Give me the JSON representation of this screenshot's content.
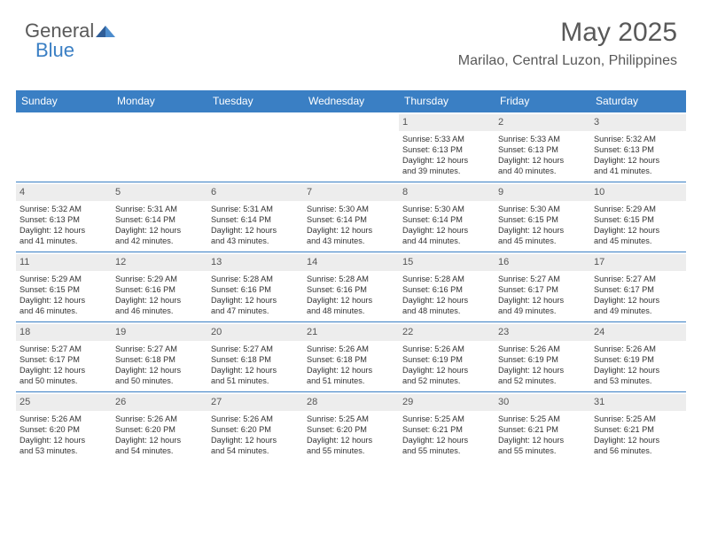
{
  "brand": {
    "general": "General",
    "blue": "Blue"
  },
  "title": "May 2025",
  "location": "Marilao, Central Luzon, Philippines",
  "colors": {
    "header_bg": "#3a7fc4",
    "header_text": "#ffffff",
    "daynum_bg": "#ededed",
    "body_text": "#333333",
    "title_text": "#595959"
  },
  "weekday_labels": [
    "Sunday",
    "Monday",
    "Tuesday",
    "Wednesday",
    "Thursday",
    "Friday",
    "Saturday"
  ],
  "weeks": [
    [
      {
        "blank": true
      },
      {
        "blank": true
      },
      {
        "blank": true
      },
      {
        "blank": true
      },
      {
        "d": "1",
        "sr": "Sunrise: 5:33 AM",
        "ss": "Sunset: 6:13 PM",
        "dl1": "Daylight: 12 hours",
        "dl2": "and 39 minutes."
      },
      {
        "d": "2",
        "sr": "Sunrise: 5:33 AM",
        "ss": "Sunset: 6:13 PM",
        "dl1": "Daylight: 12 hours",
        "dl2": "and 40 minutes."
      },
      {
        "d": "3",
        "sr": "Sunrise: 5:32 AM",
        "ss": "Sunset: 6:13 PM",
        "dl1": "Daylight: 12 hours",
        "dl2": "and 41 minutes."
      }
    ],
    [
      {
        "d": "4",
        "sr": "Sunrise: 5:32 AM",
        "ss": "Sunset: 6:13 PM",
        "dl1": "Daylight: 12 hours",
        "dl2": "and 41 minutes."
      },
      {
        "d": "5",
        "sr": "Sunrise: 5:31 AM",
        "ss": "Sunset: 6:14 PM",
        "dl1": "Daylight: 12 hours",
        "dl2": "and 42 minutes."
      },
      {
        "d": "6",
        "sr": "Sunrise: 5:31 AM",
        "ss": "Sunset: 6:14 PM",
        "dl1": "Daylight: 12 hours",
        "dl2": "and 43 minutes."
      },
      {
        "d": "7",
        "sr": "Sunrise: 5:30 AM",
        "ss": "Sunset: 6:14 PM",
        "dl1": "Daylight: 12 hours",
        "dl2": "and 43 minutes."
      },
      {
        "d": "8",
        "sr": "Sunrise: 5:30 AM",
        "ss": "Sunset: 6:14 PM",
        "dl1": "Daylight: 12 hours",
        "dl2": "and 44 minutes."
      },
      {
        "d": "9",
        "sr": "Sunrise: 5:30 AM",
        "ss": "Sunset: 6:15 PM",
        "dl1": "Daylight: 12 hours",
        "dl2": "and 45 minutes."
      },
      {
        "d": "10",
        "sr": "Sunrise: 5:29 AM",
        "ss": "Sunset: 6:15 PM",
        "dl1": "Daylight: 12 hours",
        "dl2": "and 45 minutes."
      }
    ],
    [
      {
        "d": "11",
        "sr": "Sunrise: 5:29 AM",
        "ss": "Sunset: 6:15 PM",
        "dl1": "Daylight: 12 hours",
        "dl2": "and 46 minutes."
      },
      {
        "d": "12",
        "sr": "Sunrise: 5:29 AM",
        "ss": "Sunset: 6:16 PM",
        "dl1": "Daylight: 12 hours",
        "dl2": "and 46 minutes."
      },
      {
        "d": "13",
        "sr": "Sunrise: 5:28 AM",
        "ss": "Sunset: 6:16 PM",
        "dl1": "Daylight: 12 hours",
        "dl2": "and 47 minutes."
      },
      {
        "d": "14",
        "sr": "Sunrise: 5:28 AM",
        "ss": "Sunset: 6:16 PM",
        "dl1": "Daylight: 12 hours",
        "dl2": "and 48 minutes."
      },
      {
        "d": "15",
        "sr": "Sunrise: 5:28 AM",
        "ss": "Sunset: 6:16 PM",
        "dl1": "Daylight: 12 hours",
        "dl2": "and 48 minutes."
      },
      {
        "d": "16",
        "sr": "Sunrise: 5:27 AM",
        "ss": "Sunset: 6:17 PM",
        "dl1": "Daylight: 12 hours",
        "dl2": "and 49 minutes."
      },
      {
        "d": "17",
        "sr": "Sunrise: 5:27 AM",
        "ss": "Sunset: 6:17 PM",
        "dl1": "Daylight: 12 hours",
        "dl2": "and 49 minutes."
      }
    ],
    [
      {
        "d": "18",
        "sr": "Sunrise: 5:27 AM",
        "ss": "Sunset: 6:17 PM",
        "dl1": "Daylight: 12 hours",
        "dl2": "and 50 minutes."
      },
      {
        "d": "19",
        "sr": "Sunrise: 5:27 AM",
        "ss": "Sunset: 6:18 PM",
        "dl1": "Daylight: 12 hours",
        "dl2": "and 50 minutes."
      },
      {
        "d": "20",
        "sr": "Sunrise: 5:27 AM",
        "ss": "Sunset: 6:18 PM",
        "dl1": "Daylight: 12 hours",
        "dl2": "and 51 minutes."
      },
      {
        "d": "21",
        "sr": "Sunrise: 5:26 AM",
        "ss": "Sunset: 6:18 PM",
        "dl1": "Daylight: 12 hours",
        "dl2": "and 51 minutes."
      },
      {
        "d": "22",
        "sr": "Sunrise: 5:26 AM",
        "ss": "Sunset: 6:19 PM",
        "dl1": "Daylight: 12 hours",
        "dl2": "and 52 minutes."
      },
      {
        "d": "23",
        "sr": "Sunrise: 5:26 AM",
        "ss": "Sunset: 6:19 PM",
        "dl1": "Daylight: 12 hours",
        "dl2": "and 52 minutes."
      },
      {
        "d": "24",
        "sr": "Sunrise: 5:26 AM",
        "ss": "Sunset: 6:19 PM",
        "dl1": "Daylight: 12 hours",
        "dl2": "and 53 minutes."
      }
    ],
    [
      {
        "d": "25",
        "sr": "Sunrise: 5:26 AM",
        "ss": "Sunset: 6:20 PM",
        "dl1": "Daylight: 12 hours",
        "dl2": "and 53 minutes."
      },
      {
        "d": "26",
        "sr": "Sunrise: 5:26 AM",
        "ss": "Sunset: 6:20 PM",
        "dl1": "Daylight: 12 hours",
        "dl2": "and 54 minutes."
      },
      {
        "d": "27",
        "sr": "Sunrise: 5:26 AM",
        "ss": "Sunset: 6:20 PM",
        "dl1": "Daylight: 12 hours",
        "dl2": "and 54 minutes."
      },
      {
        "d": "28",
        "sr": "Sunrise: 5:25 AM",
        "ss": "Sunset: 6:20 PM",
        "dl1": "Daylight: 12 hours",
        "dl2": "and 55 minutes."
      },
      {
        "d": "29",
        "sr": "Sunrise: 5:25 AM",
        "ss": "Sunset: 6:21 PM",
        "dl1": "Daylight: 12 hours",
        "dl2": "and 55 minutes."
      },
      {
        "d": "30",
        "sr": "Sunrise: 5:25 AM",
        "ss": "Sunset: 6:21 PM",
        "dl1": "Daylight: 12 hours",
        "dl2": "and 55 minutes."
      },
      {
        "d": "31",
        "sr": "Sunrise: 5:25 AM",
        "ss": "Sunset: 6:21 PM",
        "dl1": "Daylight: 12 hours",
        "dl2": "and 56 minutes."
      }
    ]
  ]
}
